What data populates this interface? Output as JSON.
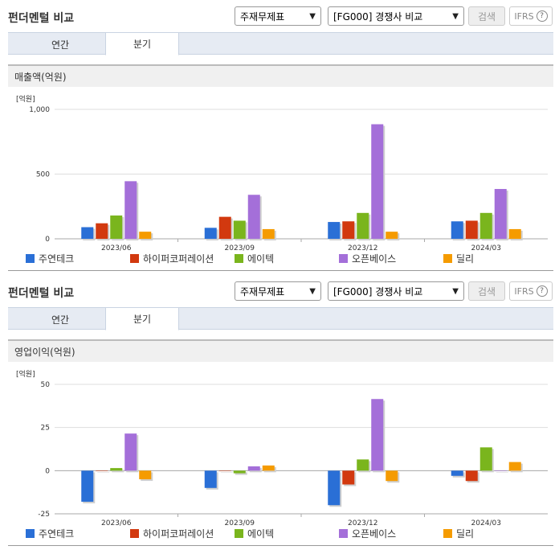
{
  "colors": {
    "series": [
      "#2a6fd6",
      "#d2390f",
      "#7ab51d",
      "#a46fd9",
      "#f59b00"
    ],
    "grid": "#dddddd",
    "axis": "#aaaaaa"
  },
  "legend": [
    "주연테크",
    "하이퍼코퍼레이션",
    "에이텍",
    "오픈베이스",
    "딜리"
  ],
  "sections": [
    {
      "title": "펀더멘털 비교",
      "report_select": "주재무제표",
      "compare_select": "[FG000] 경쟁사 비교",
      "search_label": "검색",
      "ifrs_label": "IFRS",
      "help_icon": "?",
      "tabs": [
        {
          "label": "연간",
          "active": false
        },
        {
          "label": "분기",
          "active": true
        }
      ],
      "subheader": "매출액(억원)"
    },
    {
      "title": "펀더멘털 비교",
      "report_select": "주재무제표",
      "compare_select": "[FG000] 경쟁사 비교",
      "search_label": "검색",
      "ifrs_label": "IFRS",
      "help_icon": "?",
      "tabs": [
        {
          "label": "연간",
          "active": false
        },
        {
          "label": "분기",
          "active": true
        }
      ],
      "subheader": "영업이익(억원)"
    }
  ],
  "chart_data": [
    {
      "type": "bar",
      "unit_label": "[억원]",
      "categories": [
        "2023/06",
        "2023/09",
        "2023/12",
        "2024/03"
      ],
      "ylim": [
        0,
        1000
      ],
      "yticks": [
        0,
        500,
        1000
      ],
      "ytick_labels": [
        "0",
        "500",
        "1,000"
      ],
      "grid": true,
      "series": [
        {
          "name": "주연테크",
          "values": [
            90,
            85,
            130,
            135
          ]
        },
        {
          "name": "하이퍼코퍼레이션",
          "values": [
            120,
            170,
            135,
            140
          ]
        },
        {
          "name": "에이텍",
          "values": [
            180,
            140,
            200,
            200
          ]
        },
        {
          "name": "오픈베이스",
          "values": [
            445,
            340,
            885,
            385
          ]
        },
        {
          "name": "딜리",
          "values": [
            55,
            75,
            55,
            75
          ]
        }
      ]
    },
    {
      "type": "bar",
      "unit_label": "[억원]",
      "categories": [
        "2023/06",
        "2023/09",
        "2023/12",
        "2024/03"
      ],
      "ylim": [
        -25,
        50
      ],
      "yticks": [
        -25,
        0,
        25,
        50
      ],
      "ytick_labels": [
        "-25",
        "0",
        "25",
        "50"
      ],
      "grid": true,
      "series": [
        {
          "name": "주연테크",
          "values": [
            -18,
            -10,
            -20,
            -3
          ]
        },
        {
          "name": "하이퍼코퍼레이션",
          "values": [
            0,
            0,
            -8,
            -6
          ]
        },
        {
          "name": "에이텍",
          "values": [
            1.5,
            -1.5,
            6.5,
            13.5
          ]
        },
        {
          "name": "오픈베이스",
          "values": [
            21.5,
            2.5,
            41.5,
            0
          ]
        },
        {
          "name": "딜리",
          "values": [
            -5,
            3,
            -6,
            5
          ]
        }
      ]
    }
  ]
}
